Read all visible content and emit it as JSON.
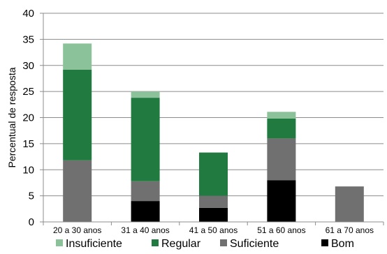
{
  "chart_data": {
    "type": "bar",
    "stacked": true,
    "categories": [
      "20 a 30 anos",
      "31 a 40 anos",
      "41 a 50 anos",
      "51 a 60 anos",
      "61 a 70 anos"
    ],
    "series": [
      {
        "name": "Bom",
        "color": "#000000",
        "values": [
          0,
          4,
          2.7,
          8,
          0
        ]
      },
      {
        "name": "Suficiente",
        "color": "#707070",
        "values": [
          11.8,
          3.8,
          2.3,
          8,
          6.8
        ]
      },
      {
        "name": "Regular",
        "color": "#217a3f",
        "values": [
          17.4,
          16,
          8.3,
          3.8,
          0
        ]
      },
      {
        "name": "Insuficiente",
        "color": "#8cc29a",
        "values": [
          5,
          1.2,
          0,
          1.3,
          0
        ]
      }
    ],
    "legend_order": [
      "Insuficiente",
      "Regular",
      "Suficiente",
      "Bom"
    ],
    "ylabel": "Percentual de resposta",
    "xlabel": "",
    "ylim": [
      0,
      40
    ],
    "yticks": [
      "0",
      "5",
      "10",
      "15",
      "20",
      "25",
      "30",
      "35",
      "40"
    ],
    "grid": true,
    "legend_position": "bottom"
  }
}
